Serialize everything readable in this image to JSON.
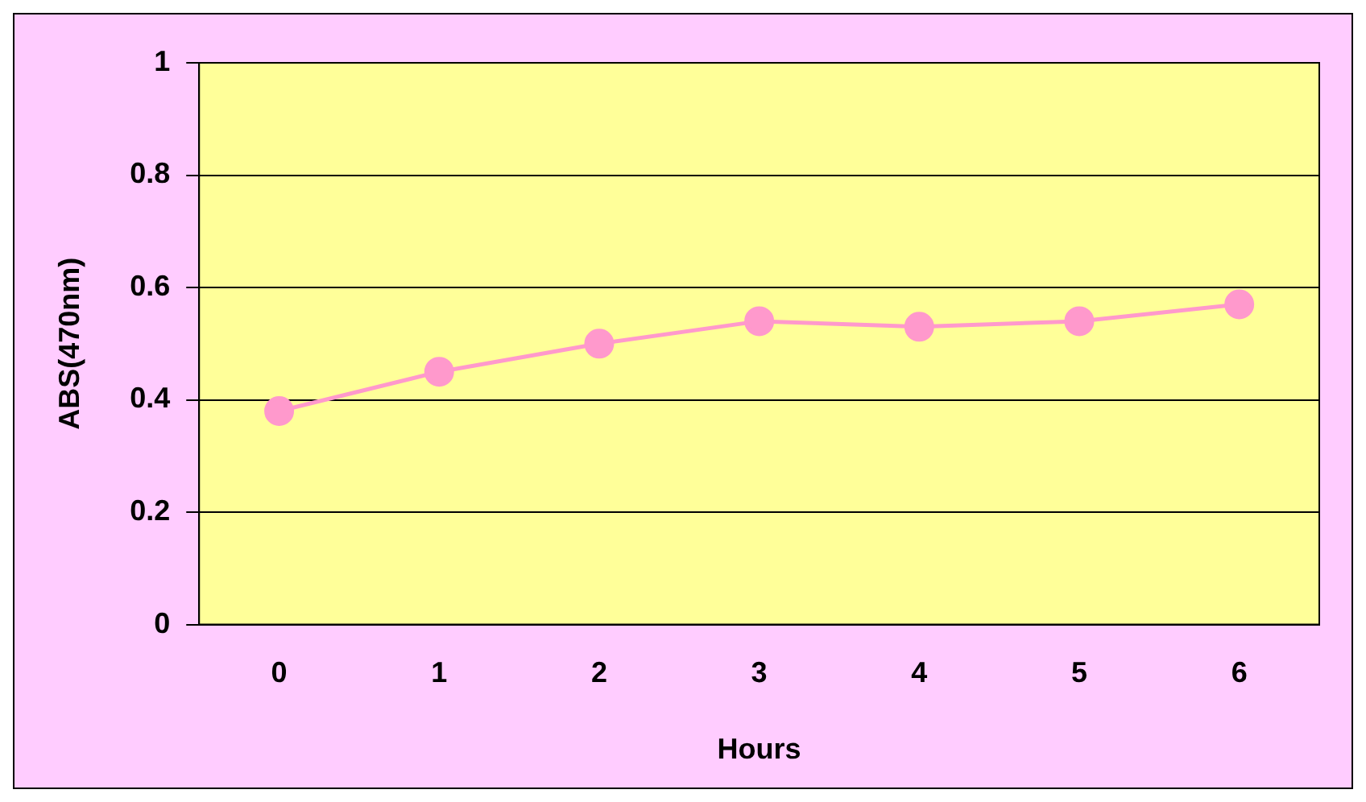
{
  "chart_data": {
    "type": "line",
    "xlabel": "Hours",
    "ylabel": "ABS(470nm)",
    "categories": [
      "0",
      "1",
      "2",
      "3",
      "4",
      "5",
      "6"
    ],
    "series": [
      {
        "color": "#ff99cc",
        "values": [
          0.38,
          0.45,
          0.5,
          0.54,
          0.53,
          0.54,
          0.57
        ]
      }
    ],
    "ylim": [
      0,
      1
    ],
    "yticks": [
      0,
      0.2,
      0.4,
      0.6,
      0.8,
      1
    ],
    "grid": "y",
    "legend": false,
    "marker": "circle",
    "line_style": "solid"
  }
}
